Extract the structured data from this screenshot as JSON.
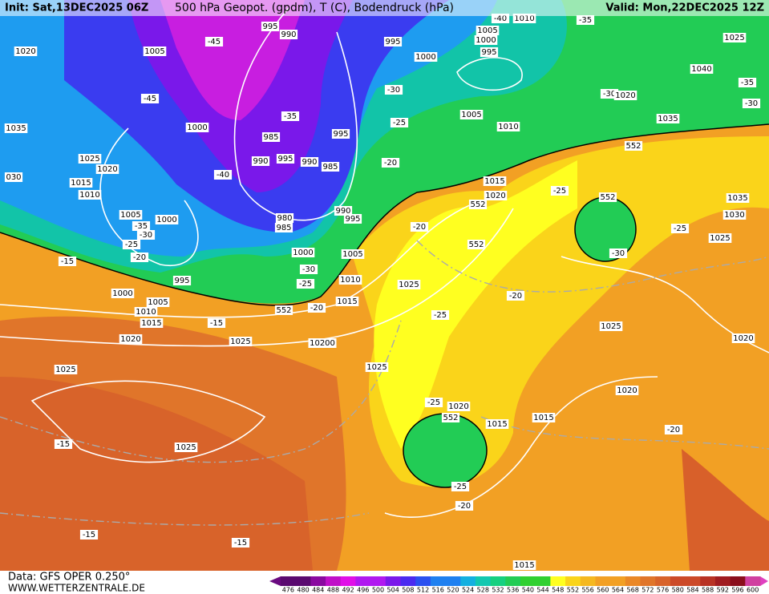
{
  "header": {
    "init": "Init: Sat,13DEC2025 06Z",
    "title": "500 hPa Geopot. (gpdm), T (C), Bodendruck (hPa)",
    "valid": "Valid: Mon,22DEC2025 12Z"
  },
  "footer": {
    "source": "Data: GFS OPER 0.250°",
    "site": "WWW.WETTERZENTRALE.DE"
  },
  "colorbar": {
    "ticks": [
      "476",
      "480",
      "484",
      "488",
      "492",
      "496",
      "500",
      "504",
      "508",
      "512",
      "516",
      "520",
      "524",
      "528",
      "532",
      "536",
      "540",
      "544",
      "548",
      "552",
      "556",
      "560",
      "564",
      "568",
      "572",
      "576",
      "580",
      "584",
      "588",
      "592",
      "596",
      "600"
    ]
  },
  "map_labels": [
    "995",
    "990",
    "995",
    "1005",
    "1000",
    "995",
    "1010",
    "-40",
    "-35",
    "1025",
    "1020",
    "1005",
    "-45",
    "1000",
    "1040",
    "-35",
    "-30",
    "-30",
    "-45",
    "-30",
    "1020",
    "1035",
    "1035",
    "1000",
    "-35",
    "1005",
    "1010",
    "-25",
    "985",
    "995",
    "990",
    "995",
    "990",
    "985",
    "1025",
    "1020",
    "-40",
    "-20",
    "552",
    "030",
    "1015",
    "1015",
    "-25",
    "552",
    "1010",
    "1020",
    "552",
    "1035",
    "990",
    "995",
    "980",
    "985",
    "1005",
    "1000",
    "1030",
    "-20",
    "-35",
    "-30",
    "-25",
    "-20",
    "552",
    "-25",
    "1025",
    "1000",
    "1005",
    "-30",
    "-15",
    "-30",
    "-25",
    "995",
    "1010",
    "1025",
    "1000",
    "-20",
    "1005",
    "1010",
    "1015",
    "552",
    "-20",
    "1015",
    "-15",
    "-25",
    "1025",
    "1020",
    "1025",
    "10200",
    "1020",
    "1025",
    "1025",
    "1020",
    "-25",
    "1020",
    "552",
    "1015",
    "1015",
    "-20",
    "-15",
    "1025",
    "-25",
    "-20",
    "-15",
    "-15",
    "1015"
  ]
}
